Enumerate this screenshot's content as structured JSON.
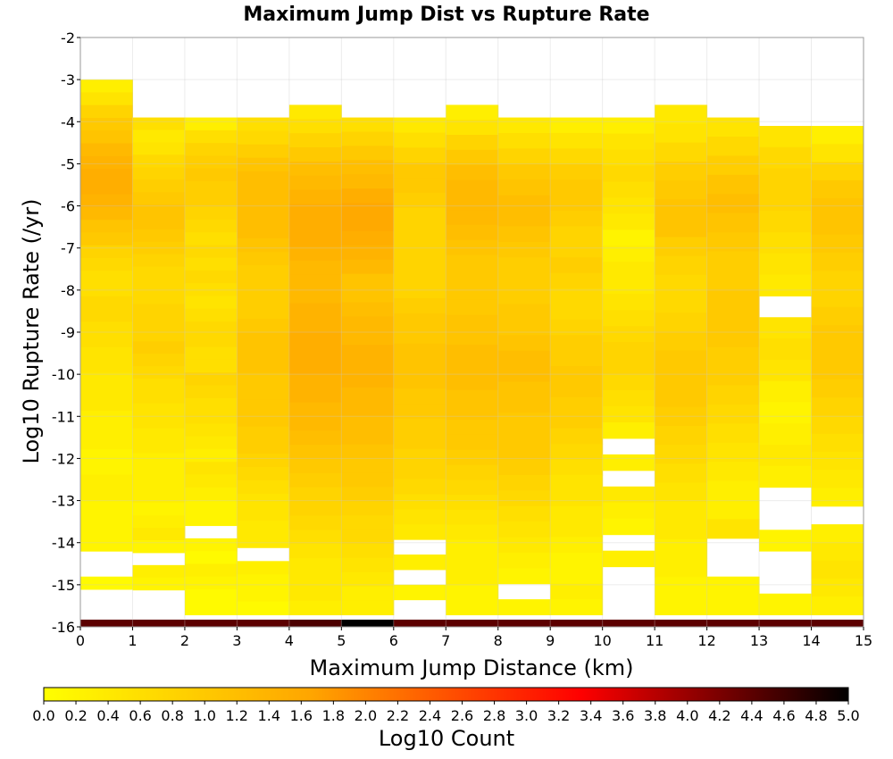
{
  "chart_data": {
    "type": "heatmap",
    "title": "Maximum Jump Dist vs Rupture Rate",
    "xlabel": "Maximum Jump Distance (km)",
    "ylabel": "Log10 Rupture Rate (/yr)",
    "xlim": [
      0,
      15
    ],
    "ylim": [
      -16,
      -2
    ],
    "x_ticks": [
      "0",
      "1",
      "2",
      "3",
      "4",
      "5",
      "6",
      "7",
      "8",
      "9",
      "10",
      "11",
      "12",
      "13",
      "14",
      "15"
    ],
    "y_ticks": [
      "-2",
      "-3",
      "-4",
      "-5",
      "-6",
      "-7",
      "-8",
      "-9",
      "-10",
      "-11",
      "-12",
      "-13",
      "-14",
      "-15",
      "-16"
    ],
    "x_bin_width": 1,
    "y_bin_height": 0.2857,
    "legend": {
      "label": "Log10 Count",
      "range": [
        0,
        5
      ],
      "ticks": [
        "0.0",
        "0.2",
        "0.4",
        "0.6",
        "0.8",
        "1.0",
        "1.2",
        "1.4",
        "1.6",
        "1.8",
        "2.0",
        "2.2",
        "2.4",
        "2.6",
        "2.8",
        "3.0",
        "3.2",
        "3.4",
        "3.6",
        "3.8",
        "4.0",
        "4.2",
        "4.4",
        "4.6",
        "4.8",
        "5.0"
      ],
      "placement": "bottom",
      "colors": [
        "#ffff00",
        "#ffa500",
        "#ff0000",
        "#000000"
      ]
    },
    "grid": true,
    "column_profiles": [
      {
        "x_bin": 0,
        "rate_range": [
          -16,
          -3.0
        ],
        "values_top_to_bottom": [
          0.3,
          0.5,
          0.8,
          1.0,
          1.1,
          1.3,
          1.4,
          1.5,
          1.5,
          1.4,
          1.3,
          1.1,
          1.0,
          0.8,
          0.7,
          0.6,
          0.6,
          0.7,
          0.7,
          0.6,
          0.6,
          0.5,
          0.5,
          0.4,
          0.4,
          0.4,
          0.3,
          0.3,
          0.3,
          0.2,
          0.2,
          0.3,
          0.3,
          0.2,
          0.2,
          0.2,
          0.2,
          null,
          null,
          0.1,
          null,
          null,
          4.4
        ]
      },
      {
        "x_bin": 1,
        "rate_range": [
          -16,
          -3.9
        ],
        "values_top_to_bottom": [
          0.6,
          0.4,
          0.5,
          0.7,
          0.8,
          0.9,
          1.0,
          1.1,
          1.1,
          1.0,
          0.9,
          0.8,
          0.7,
          0.7,
          0.7,
          0.8,
          0.8,
          0.8,
          0.9,
          0.8,
          0.7,
          0.6,
          0.6,
          0.5,
          0.5,
          0.4,
          0.4,
          0.3,
          0.3,
          0.3,
          0.3,
          0.2,
          0.3,
          0.4,
          0.2,
          null,
          0.3,
          0.2,
          null,
          null,
          4.4
        ]
      },
      {
        "x_bin": 2,
        "rate_range": [
          -16,
          -3.9
        ],
        "values_top_to_bottom": [
          0.3,
          0.6,
          0.8,
          0.9,
          1.0,
          0.9,
          0.9,
          0.8,
          0.7,
          0.6,
          0.7,
          0.6,
          0.7,
          0.6,
          0.5,
          0.6,
          0.7,
          0.7,
          0.6,
          0.6,
          0.8,
          0.7,
          0.6,
          0.6,
          0.5,
          0.4,
          0.3,
          0.5,
          0.4,
          0.3,
          0.2,
          0.2,
          null,
          0.2,
          0.1,
          0.3,
          0.2,
          0.1,
          0.1,
          4.4
        ]
      },
      {
        "x_bin": 3,
        "rate_range": [
          -16,
          -3.9
        ],
        "values_top_to_bottom": [
          0.6,
          0.7,
          0.9,
          1.1,
          1.2,
          1.2,
          1.2,
          1.2,
          1.2,
          1.1,
          1.0,
          0.9,
          0.9,
          0.9,
          0.9,
          1.0,
          1.1,
          1.1,
          1.1,
          1.0,
          1.0,
          1.0,
          1.0,
          0.9,
          0.9,
          0.8,
          0.7,
          0.6,
          0.5,
          0.5,
          0.4,
          0.4,
          null,
          0.3,
          0.2,
          0.2,
          0.1,
          4.4
        ]
      },
      {
        "x_bin": 4,
        "rate_range": [
          -16,
          -3.6
        ],
        "values_top_to_bottom": [
          0.4,
          0.6,
          0.8,
          1.0,
          1.2,
          1.3,
          1.4,
          1.5,
          1.5,
          1.5,
          1.4,
          1.3,
          1.3,
          1.3,
          1.4,
          1.4,
          1.5,
          1.5,
          1.5,
          1.4,
          1.4,
          1.3,
          1.3,
          1.2,
          1.1,
          1.0,
          0.9,
          0.8,
          0.8,
          0.7,
          0.6,
          0.5,
          0.4,
          0.4,
          0.4,
          0.3,
          4.5
        ]
      },
      {
        "x_bin": 5,
        "rate_range": [
          -16,
          -3.9
        ],
        "values_top_to_bottom": [
          0.6,
          0.8,
          1.0,
          1.2,
          1.3,
          1.5,
          1.6,
          1.6,
          1.5,
          1.4,
          1.3,
          1.1,
          1.1,
          1.2,
          1.3,
          1.3,
          1.4,
          1.4,
          1.4,
          1.3,
          1.3,
          1.2,
          1.2,
          1.1,
          1.0,
          1.0,
          0.9,
          0.8,
          0.7,
          0.7,
          0.6,
          0.5,
          0.4,
          0.3,
          0.3,
          5.0
        ]
      },
      {
        "x_bin": 6,
        "rate_range": [
          -16,
          -3.9
        ],
        "values_top_to_bottom": [
          0.4,
          0.6,
          0.8,
          1.0,
          1.0,
          0.9,
          0.8,
          0.8,
          0.8,
          0.8,
          0.8,
          0.8,
          0.9,
          1.0,
          1.0,
          1.1,
          1.1,
          1.1,
          1.0,
          1.0,
          0.9,
          0.9,
          0.8,
          0.8,
          0.7,
          0.6,
          0.5,
          0.4,
          null,
          0.3,
          null,
          0.2,
          null,
          4.4
        ]
      },
      {
        "x_bin": 7,
        "rate_range": [
          -16,
          -3.6
        ],
        "values_top_to_bottom": [
          0.3,
          0.5,
          0.8,
          1.0,
          1.2,
          1.3,
          1.3,
          1.3,
          1.2,
          1.1,
          1.0,
          1.0,
          1.0,
          1.0,
          1.1,
          1.1,
          1.2,
          1.2,
          1.2,
          1.1,
          1.1,
          1.0,
          1.0,
          0.9,
          0.8,
          0.7,
          0.6,
          0.5,
          0.4,
          0.3,
          0.3,
          0.3,
          0.2,
          0.2,
          4.4
        ]
      },
      {
        "x_bin": 8,
        "rate_range": [
          -16,
          -3.9
        ],
        "values_top_to_bottom": [
          0.4,
          0.6,
          0.8,
          1.0,
          1.1,
          1.2,
          1.2,
          1.1,
          1.0,
          0.9,
          0.9,
          0.9,
          1.0,
          1.0,
          1.1,
          1.2,
          1.2,
          1.1,
          1.1,
          1.0,
          1.0,
          1.0,
          0.9,
          0.8,
          0.7,
          0.6,
          0.5,
          0.4,
          0.3,
          0.2,
          null,
          0.2,
          4.4
        ]
      },
      {
        "x_bin": 9,
        "rate_range": [
          -16,
          -3.9
        ],
        "values_top_to_bottom": [
          0.3,
          0.5,
          0.7,
          0.9,
          1.0,
          1.0,
          0.9,
          0.8,
          0.8,
          0.9,
          0.8,
          0.7,
          0.7,
          0.8,
          0.9,
          0.9,
          1.0,
          1.0,
          0.9,
          0.9,
          0.8,
          0.7,
          0.6,
          0.5,
          0.5,
          0.4,
          0.4,
          0.3,
          0.2,
          0.2,
          0.3,
          0.2,
          4.4
        ]
      },
      {
        "x_bin": 10,
        "rate_range": [
          -16,
          -3.9
        ],
        "values_top_to_bottom": [
          0.3,
          0.5,
          0.6,
          0.7,
          0.6,
          0.5,
          0.4,
          0.2,
          0.3,
          0.4,
          0.4,
          0.5,
          0.6,
          0.7,
          0.8,
          0.8,
          0.7,
          0.6,
          0.5,
          0.3,
          null,
          0.3,
          null,
          0.4,
          0.3,
          0.2,
          null,
          0.3,
          null,
          null,
          null,
          4.4
        ]
      },
      {
        "x_bin": 11,
        "rate_range": [
          -16,
          -3.6
        ],
        "values_top_to_bottom": [
          0.4,
          0.5,
          0.7,
          0.9,
          1.0,
          1.1,
          1.1,
          0.9,
          0.8,
          0.7,
          0.7,
          0.8,
          0.9,
          1.0,
          1.0,
          1.0,
          0.9,
          0.8,
          0.7,
          0.6,
          0.5,
          0.4,
          0.4,
          0.3,
          0.3,
          0.2,
          0.2,
          4.4
        ]
      },
      {
        "x_bin": 12,
        "rate_range": [
          -16,
          -3.9
        ],
        "values_top_to_bottom": [
          0.5,
          0.7,
          0.9,
          1.1,
          1.2,
          1.1,
          1.0,
          0.9,
          0.9,
          1.0,
          1.0,
          1.0,
          0.9,
          0.9,
          0.8,
          0.7,
          0.6,
          0.5,
          0.4,
          0.3,
          0.3,
          0.5,
          null,
          null,
          0.2,
          0.2,
          4.4
        ]
      },
      {
        "x_bin": 13,
        "rate_range": [
          -16,
          -4.1
        ],
        "values_top_to_bottom": [
          0.5,
          0.7,
          0.8,
          0.8,
          0.7,
          0.6,
          0.5,
          0.4,
          null,
          0.5,
          0.6,
          0.5,
          0.3,
          0.2,
          0.3,
          0.4,
          0.3,
          null,
          null,
          0.2,
          null,
          null,
          0.2,
          4.4
        ]
      },
      {
        "x_bin": 14,
        "rate_range": [
          -16,
          -4.1
        ],
        "values_top_to_bottom": [
          0.3,
          0.5,
          0.8,
          1.0,
          1.1,
          1.1,
          1.0,
          0.9,
          0.8,
          0.8,
          0.9,
          1.0,
          1.0,
          1.0,
          0.9,
          0.8,
          0.7,
          0.6,
          0.5,
          0.4,
          0.3,
          null,
          0.3,
          0.4,
          0.5,
          0.4,
          0.3,
          4.4
        ]
      }
    ]
  }
}
